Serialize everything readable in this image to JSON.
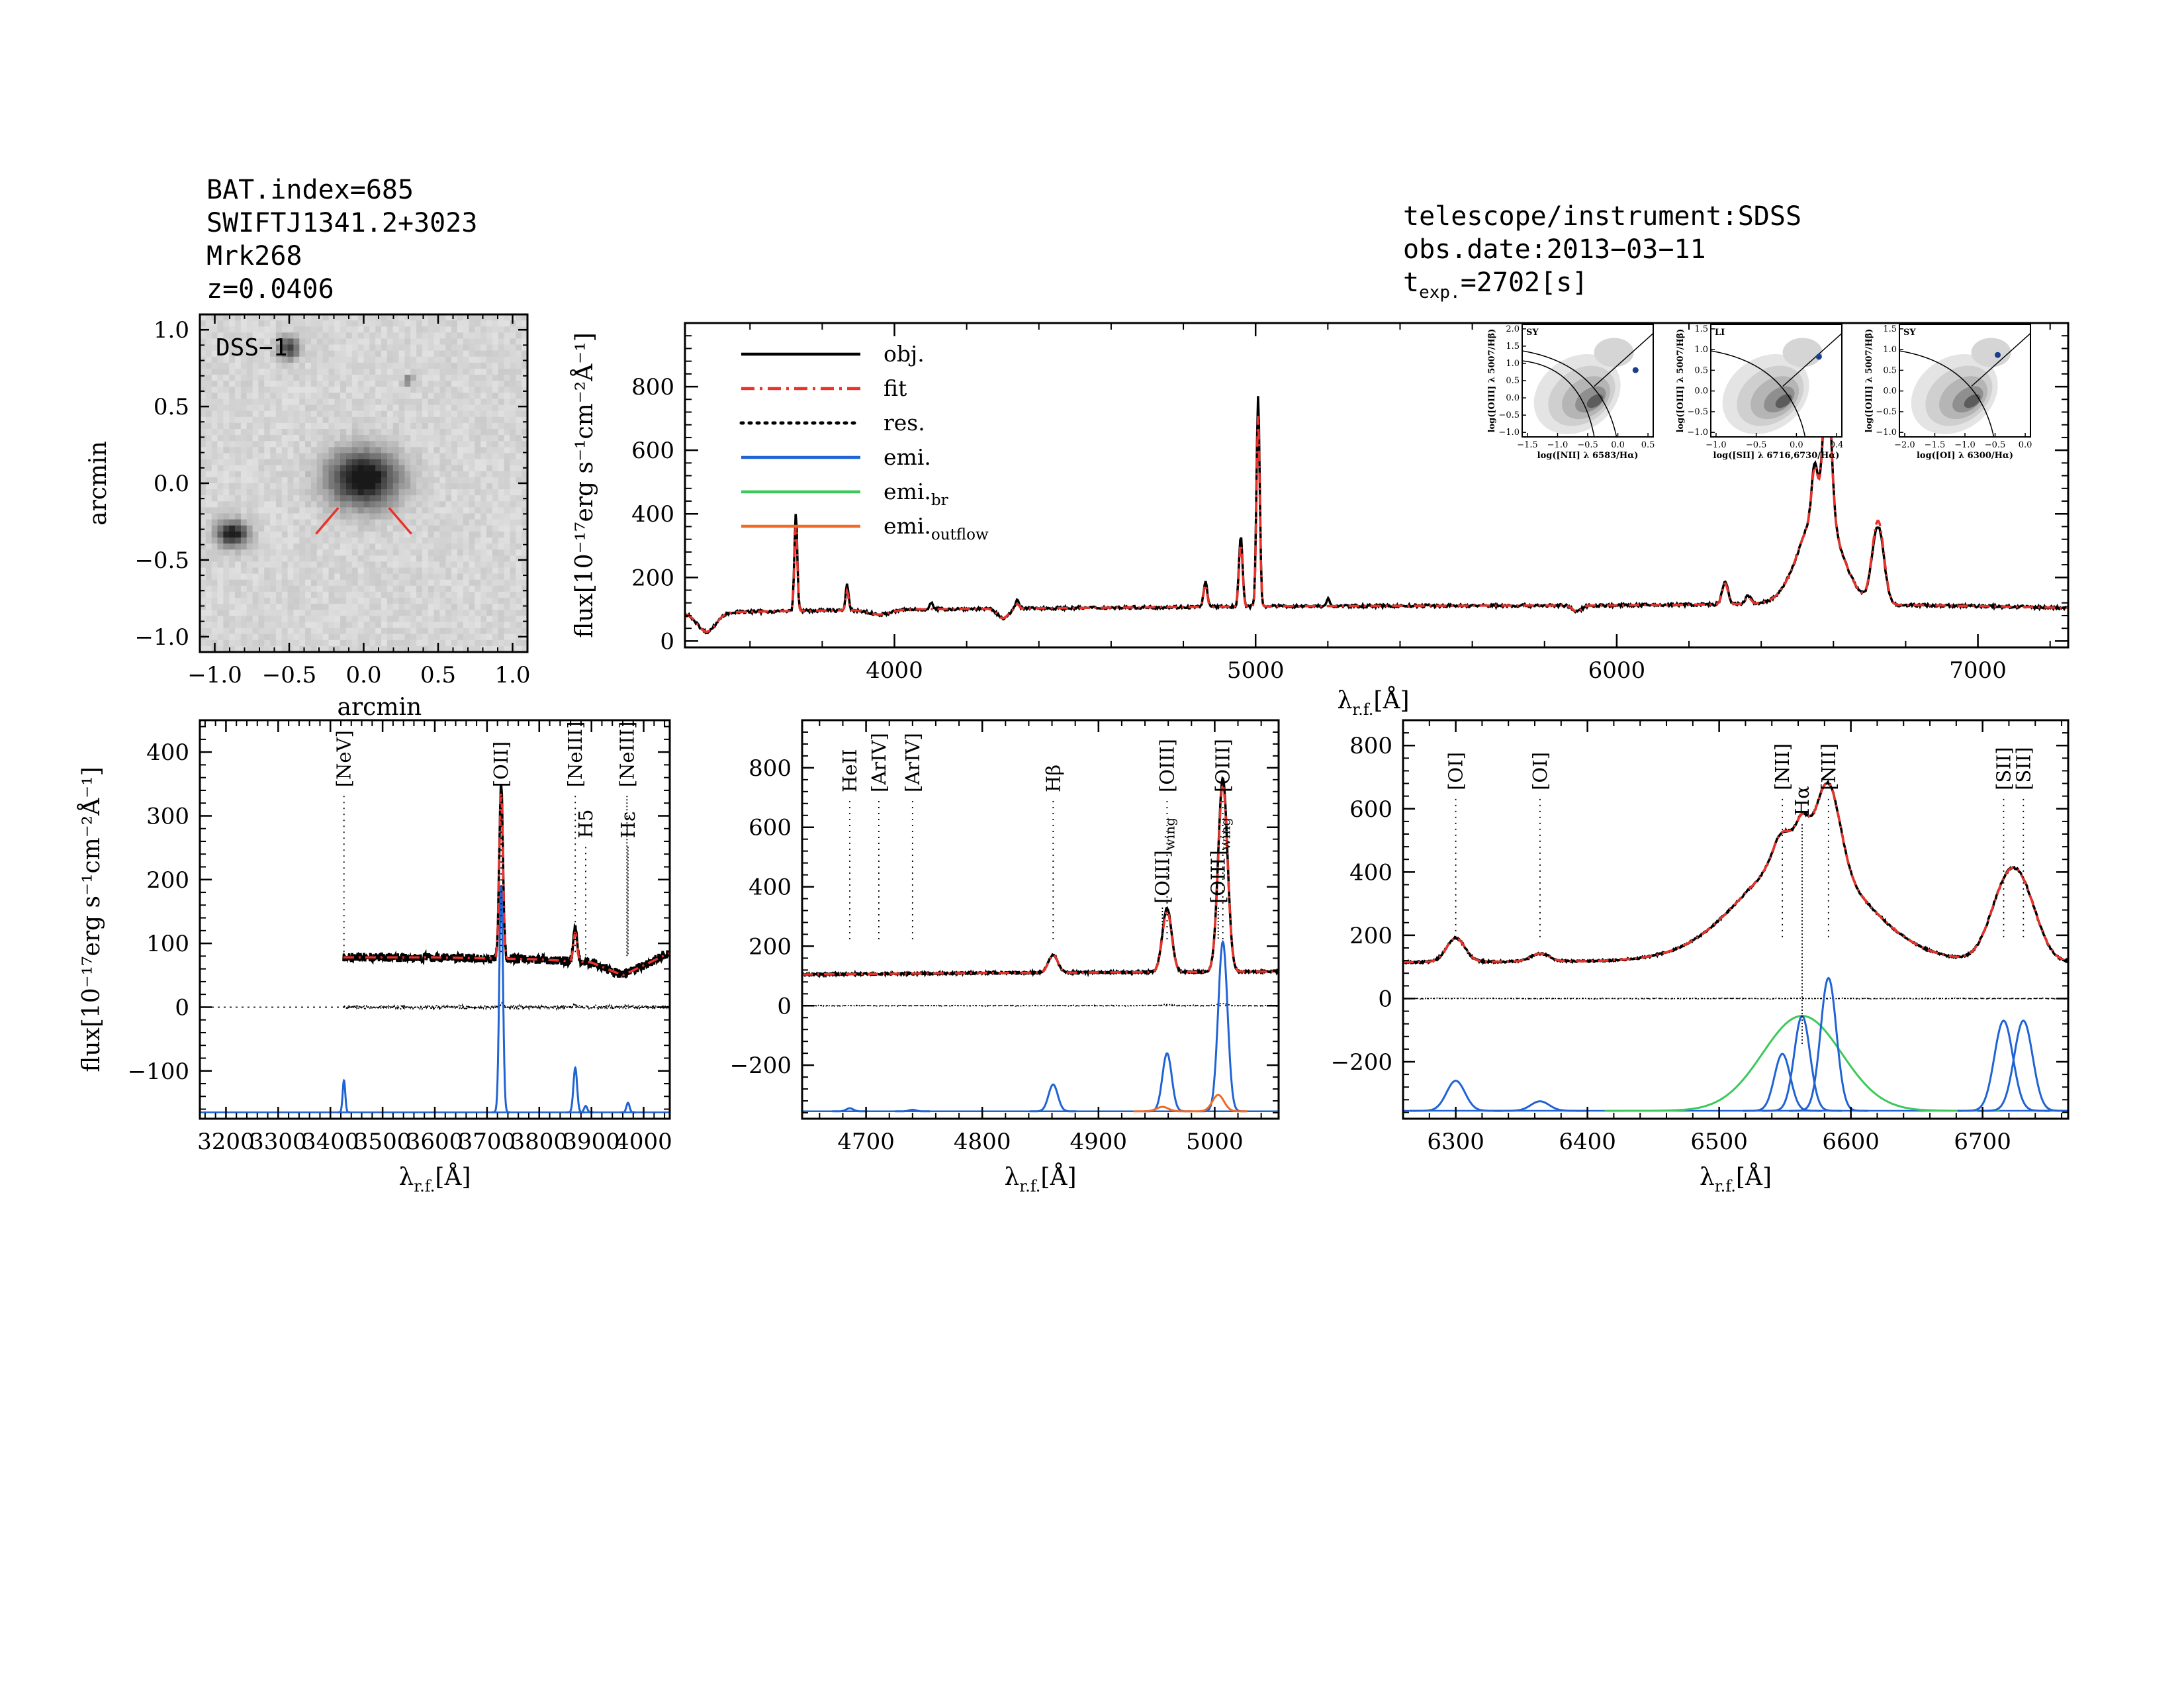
{
  "header": {
    "left_lines": [
      "BAT.index=685",
      "SWIFTJ1341.2+3023",
      "Mrk268",
      "z=0.0406"
    ],
    "right_lines": [
      {
        "text": "telescope/instrument:SDSS"
      },
      {
        "text": "obs.date:2013−03−11"
      },
      {
        "main": "t",
        "sub": "exp.",
        "rest": "=2702[s]"
      }
    ]
  },
  "colors": {
    "obj": "#000000",
    "fit": "#e8322a",
    "res": "#000000",
    "emi": "#1f63d4",
    "emi_br": "#3cc95a",
    "emi_outflow": "#f06a26",
    "red_label": "#e8322a",
    "inset_label": "#1f63d4"
  },
  "image_panel": {
    "label": "DSS−1",
    "xlabel": "arcmin",
    "ylabel": "arcmin",
    "xticks": [
      {
        "v": -1.0,
        "t": "−1.0"
      },
      {
        "v": -0.5,
        "t": "−0.5"
      },
      {
        "v": 0.0,
        "t": "0.0"
      },
      {
        "v": 0.5,
        "t": "0.5"
      },
      {
        "v": 1.0,
        "t": "1.0"
      }
    ],
    "yticks": [
      {
        "v": -1.0,
        "t": "−1.0"
      },
      {
        "v": -0.5,
        "t": "−0.5"
      },
      {
        "v": 0.0,
        "t": "0.0"
      },
      {
        "v": 0.5,
        "t": "0.5"
      },
      {
        "v": 1.0,
        "t": "1.0"
      }
    ],
    "xlim": [
      -1.1,
      1.1
    ],
    "ylim": [
      -1.1,
      1.1
    ],
    "sources": [
      {
        "x": 0.0,
        "y": 0.03,
        "rx": 0.22,
        "ry": 0.17,
        "peak": 0.95
      },
      {
        "x": -0.88,
        "y": -0.33,
        "rx": 0.1,
        "ry": 0.08,
        "peak": 0.85
      },
      {
        "x": -0.5,
        "y": 0.88,
        "rx": 0.07,
        "ry": 0.07,
        "peak": 0.65
      },
      {
        "x": 0.3,
        "y": 0.67,
        "rx": 0.03,
        "ry": 0.03,
        "peak": 0.5
      }
    ]
  },
  "legend": [
    {
      "key": "obj",
      "label": "obj.",
      "style": "solid"
    },
    {
      "key": "fit",
      "label": "fit",
      "style": "dashdot"
    },
    {
      "key": "res",
      "label": "res.",
      "style": "dotted"
    },
    {
      "key": "emi",
      "label": "emi.",
      "style": "solid"
    },
    {
      "key": "emi_br",
      "label": "emi.",
      "sub": "br",
      "style": "solid"
    },
    {
      "key": "emi_outflow",
      "label": "emi.",
      "sub": "outflow",
      "style": "solid"
    }
  ],
  "bpt_insets": [
    {
      "tag": "SY",
      "xlabel": "log([NII] λ 6583/Hα)",
      "ylabel": "log([OIII] λ 5007/Hβ)",
      "xlim": [
        -1.5,
        0.5
      ],
      "ylim": [
        -1.0,
        2.0
      ],
      "xticks": [
        "−1.5",
        "−1.0",
        "−0.5",
        "0.0",
        "0.5"
      ],
      "yticks": [
        "−1.0",
        "−0.5",
        "0.0",
        "0.5",
        "1.0",
        "1.5",
        "2.0"
      ],
      "point": [
        0.23,
        0.78
      ]
    },
    {
      "tag": "LI",
      "xlabel": "log([SII] λ 6716,6730/Hα)",
      "ylabel": "log([OIII] λ 5007/Hβ)",
      "xlim": [
        -1.2,
        0.4
      ],
      "ylim": [
        -1.0,
        1.5
      ],
      "xticks": [
        "−1.0",
        "−0.5",
        "0.0",
        "0.4"
      ],
      "yticks": [
        "−1.0",
        "−0.5",
        "0.0",
        "0.5",
        "1.0",
        "1.5"
      ],
      "point": [
        0.12,
        0.78
      ]
    },
    {
      "tag": "SY",
      "xlabel": "log([OI] λ 6300/Hα)",
      "ylabel": "log([OIII] λ 5007/Hβ)",
      "xlim": [
        -2.2,
        0.0
      ],
      "ylim": [
        -1.0,
        1.5
      ],
      "xticks": [
        "−2.0",
        "−1.5",
        "−1.0",
        "−0.5",
        "0.0"
      ],
      "yticks": [
        "−1.0",
        "−0.5",
        "0.0",
        "0.5",
        "1.0",
        "1.5"
      ],
      "point": [
        -0.55,
        0.82
      ]
    }
  ],
  "chart_data": [
    {
      "type": "line",
      "id": "full_spectrum",
      "ylabel": "flux[10⁻¹⁷erg s⁻¹cm⁻²Å⁻¹]",
      "xlabel": "λ r.f.[Å]",
      "xlim": [
        3420,
        7250
      ],
      "ylim": [
        -20,
        1000
      ],
      "xticks": [
        4000,
        5000,
        6000,
        7000
      ],
      "yticks": [
        0,
        200,
        400,
        600,
        800
      ],
      "continuum": [
        [
          3420,
          88
        ],
        [
          3600,
          92
        ],
        [
          3800,
          96
        ],
        [
          4000,
          99
        ],
        [
          4500,
          104
        ],
        [
          5000,
          109
        ],
        [
          5500,
          111
        ],
        [
          6000,
          112
        ],
        [
          6500,
          118
        ],
        [
          7000,
          110
        ],
        [
          7250,
          104
        ]
      ],
      "troughs": [
        [
          3480,
          25,
          60
        ],
        [
          3960,
          30,
          15
        ],
        [
          4300,
          15,
          30
        ],
        [
          5890,
          12,
          20
        ]
      ],
      "obj_lines": [
        [
          3727,
          4,
          305
        ],
        [
          3869,
          4,
          80
        ],
        [
          4102,
          4,
          20
        ],
        [
          4340,
          5,
          25
        ],
        [
          4861,
          5,
          80
        ],
        [
          4959,
          5,
          220
        ],
        [
          5007,
          4.5,
          660
        ],
        [
          5200,
          4,
          25
        ],
        [
          6300,
          8,
          70
        ],
        [
          6364,
          8,
          25
        ],
        [
          6563,
          55,
          300
        ],
        [
          6548,
          8,
          150
        ],
        [
          6583,
          11,
          440
        ],
        [
          6716,
          14,
          140
        ],
        [
          6731,
          14,
          140
        ]
      ],
      "fit_lines": [
        [
          3727,
          4,
          270
        ],
        [
          3869,
          4,
          60
        ],
        [
          4340,
          5,
          15
        ],
        [
          4861,
          5,
          70
        ],
        [
          4959,
          5,
          200
        ],
        [
          5007,
          4.5,
          600
        ],
        [
          6300,
          8,
          65
        ],
        [
          6364,
          8,
          20
        ],
        [
          6563,
          55,
          300
        ],
        [
          6548,
          8,
          140
        ],
        [
          6583,
          11,
          420
        ],
        [
          6716,
          14,
          150
        ],
        [
          6731,
          14,
          150
        ]
      ]
    },
    {
      "type": "line",
      "id": "zoom_oii",
      "ylabel": "flux[10⁻¹⁷erg s⁻¹cm⁻²Å⁻¹]",
      "xlabel": "λ r.f.[Å]",
      "xlim": [
        3150,
        4050
      ],
      "ylim": [
        -175,
        450
      ],
      "xticks": [
        3200,
        3300,
        3400,
        3500,
        3600,
        3700,
        3800,
        3900,
        4000
      ],
      "yticks": [
        -100,
        0,
        100,
        200,
        300,
        400
      ],
      "data_range": [
        3425,
        4050
      ],
      "continuum": [
        [
          3425,
          78
        ],
        [
          3600,
          78
        ],
        [
          3800,
          75
        ],
        [
          3900,
          70
        ],
        [
          3960,
          50
        ],
        [
          4050,
          85
        ]
      ],
      "obj_lines": [
        [
          3727,
          3.5,
          275
        ],
        [
          3869,
          3.5,
          55
        ]
      ],
      "fit_lines": [
        [
          3727,
          3.5,
          260
        ],
        [
          3869,
          3.5,
          45
        ]
      ],
      "res_offset": 0,
      "emi_baseline": -165,
      "emi_components": [
        {
          "key": "emi",
          "center": 3426,
          "sigma": 2.5,
          "amp": 50
        },
        {
          "key": "emi",
          "center": 3727,
          "sigma": 3.5,
          "amp": 355
        },
        {
          "key": "emi",
          "center": 3869,
          "sigma": 3.5,
          "amp": 70
        },
        {
          "key": "emi",
          "center": 3889,
          "sigma": 3,
          "amp": 10
        },
        {
          "key": "emi",
          "center": 3970,
          "sigma": 3,
          "amp": 15
        }
      ],
      "line_markers": [
        {
          "x": 3426,
          "label": "[NeV]",
          "y0": 430,
          "y1": 80,
          "dot": "sparse",
          "color": "black"
        },
        {
          "x": 3727,
          "label": "[OII]",
          "y0": 430,
          "y1": 80,
          "dot": "sparse",
          "color": "black"
        },
        {
          "x": 3869,
          "label": "[NeIII]",
          "y0": 430,
          "y1": 80,
          "dot": "sparse",
          "color": "black"
        },
        {
          "x": 3889,
          "label": "H5",
          "y0": 350,
          "y1": 80,
          "dot": "sparse",
          "color": "black"
        },
        {
          "x": 3968,
          "label": "[NeIII]",
          "y0": 430,
          "y1": 80,
          "dot": "dense",
          "color": "black"
        },
        {
          "x": 3970,
          "label": "Hε",
          "y0": 350,
          "y1": 80,
          "dot": "dense",
          "color": "black"
        }
      ]
    },
    {
      "type": "line",
      "id": "zoom_hbeta_oiii",
      "xlabel": "λ r.f.[Å]",
      "xlim": [
        4645,
        5055
      ],
      "ylim": [
        -380,
        960
      ],
      "xticks": [
        4700,
        4800,
        4900,
        5000
      ],
      "yticks": [
        -200,
        0,
        200,
        400,
        600,
        800
      ],
      "data_range": [
        4645,
        5055
      ],
      "continuum": [
        [
          4645,
          105
        ],
        [
          4800,
          110
        ],
        [
          5055,
          115
        ]
      ],
      "obj_lines": [
        [
          4861,
          4,
          60
        ],
        [
          4959,
          4,
          215
        ],
        [
          5007,
          4,
          650
        ]
      ],
      "fit_lines": [
        [
          4861,
          4,
          60
        ],
        [
          4959,
          4,
          205
        ],
        [
          5007,
          4,
          630
        ]
      ],
      "res_offset": 0,
      "emi_baseline": -355,
      "emi_components": [
        {
          "key": "emi",
          "center": 4686,
          "sigma": 3,
          "amp": 10
        },
        {
          "key": "emi",
          "center": 4740,
          "sigma": 3,
          "amp": 5
        },
        {
          "key": "emi",
          "center": 4861,
          "sigma": 4,
          "amp": 90
        },
        {
          "key": "emi",
          "center": 4959,
          "sigma": 4,
          "amp": 195
        },
        {
          "key": "emi",
          "center": 5007,
          "sigma": 4,
          "amp": 570
        },
        {
          "key": "emi_outflow",
          "center": 4955,
          "sigma": 5,
          "amp": 15
        },
        {
          "key": "emi_outflow",
          "center": 5003,
          "sigma": 5,
          "amp": 55
        }
      ],
      "line_markers": [
        {
          "x": 4686,
          "label": "HeII",
          "y0": 900,
          "y1": 220,
          "dot": "sparse",
          "color": "black"
        },
        {
          "x": 4711,
          "label": "[ArIV]",
          "y0": 900,
          "y1": 220,
          "dot": "sparse",
          "color": "red"
        },
        {
          "x": 4740,
          "label": "[ArIV]",
          "y0": 900,
          "y1": 220,
          "dot": "sparse",
          "color": "red"
        },
        {
          "x": 4861,
          "label": "Hβ",
          "y0": 900,
          "y1": 220,
          "dot": "sparse",
          "color": "black"
        },
        {
          "x": 4959,
          "label": "[OIII]",
          "y0": 900,
          "y1": 220,
          "dot": "sparse",
          "color": "black"
        },
        {
          "x": 4955,
          "label": "[OIII]wing",
          "y0": 330,
          "y1": 220,
          "dot": "dense",
          "color": "black"
        },
        {
          "x": 5007,
          "label": "[OIII]",
          "y0": 900,
          "y1": 220,
          "dot": "sparse",
          "color": "black"
        },
        {
          "x": 5003,
          "label": "[OIII]wing",
          "y0": 330,
          "y1": 220,
          "dot": "dense",
          "color": "black"
        }
      ]
    },
    {
      "type": "line",
      "id": "zoom_halpha",
      "xlabel": "λ r.f.[Å]",
      "xlim": [
        6260,
        6765
      ],
      "ylim": [
        -380,
        880
      ],
      "xticks": [
        6300,
        6400,
        6500,
        6600,
        6700
      ],
      "yticks": [
        -200,
        0,
        200,
        400,
        600,
        800
      ],
      "data_range": [
        6260,
        6765
      ],
      "continuum": [
        [
          6260,
          115
        ],
        [
          6400,
          118
        ],
        [
          6500,
          125
        ],
        [
          6650,
          120
        ],
        [
          6765,
          115
        ]
      ],
      "obj_lines": [
        [
          6300,
          7,
          75
        ],
        [
          6364,
          7,
          25
        ],
        [
          6563,
          45,
          330
        ],
        [
          6548,
          7,
          90
        ],
        [
          6563,
          5,
          100
        ],
        [
          6583,
          9,
          260
        ],
        [
          6716,
          12,
          180
        ],
        [
          6731,
          12,
          180
        ]
      ],
      "fit_lines": [
        [
          6300,
          7,
          75
        ],
        [
          6364,
          7,
          25
        ],
        [
          6563,
          45,
          330
        ],
        [
          6548,
          7,
          90
        ],
        [
          6563,
          5,
          100
        ],
        [
          6583,
          9,
          260
        ],
        [
          6716,
          12,
          180
        ],
        [
          6731,
          12,
          180
        ]
      ],
      "res_offset": 0,
      "emi_baseline": -355,
      "emi_components": [
        {
          "key": "emi",
          "center": 6300,
          "sigma": 7,
          "amp": 95
        },
        {
          "key": "emi",
          "center": 6364,
          "sigma": 7,
          "amp": 30
        },
        {
          "key": "emi_br",
          "center": 6563,
          "sigma": 30,
          "amp": 300
        },
        {
          "key": "emi",
          "center": 6548,
          "sigma": 6,
          "amp": 180
        },
        {
          "key": "emi",
          "center": 6563,
          "sigma": 6,
          "amp": 300
        },
        {
          "key": "emi",
          "center": 6583,
          "sigma": 6,
          "amp": 420
        },
        {
          "key": "emi",
          "center": 6716,
          "sigma": 7,
          "amp": 285
        },
        {
          "key": "emi",
          "center": 6731,
          "sigma": 7,
          "amp": 285
        }
      ],
      "line_markers": [
        {
          "x": 6300,
          "label": "[OI]",
          "y0": 830,
          "y1": 180,
          "dot": "sparse",
          "color": "black"
        },
        {
          "x": 6364,
          "label": "[OI]",
          "y0": 830,
          "y1": 180,
          "dot": "sparse",
          "color": "black"
        },
        {
          "x": 6548,
          "label": "[NII]",
          "y0": 830,
          "y1": 180,
          "dot": "sparse",
          "color": "black"
        },
        {
          "x": 6563,
          "label": "Hα",
          "y0": 750,
          "y1": -150,
          "dot": "dense",
          "color": "black"
        },
        {
          "x": 6583,
          "label": "[NII]",
          "y0": 830,
          "y1": 180,
          "dot": "sparse",
          "color": "black"
        },
        {
          "x": 6716,
          "label": "[SII]",
          "y0": 830,
          "y1": 180,
          "dot": "sparse",
          "color": "black"
        },
        {
          "x": 6731,
          "label": "[SII]",
          "y0": 830,
          "y1": 180,
          "dot": "sparse",
          "color": "black"
        }
      ]
    }
  ]
}
